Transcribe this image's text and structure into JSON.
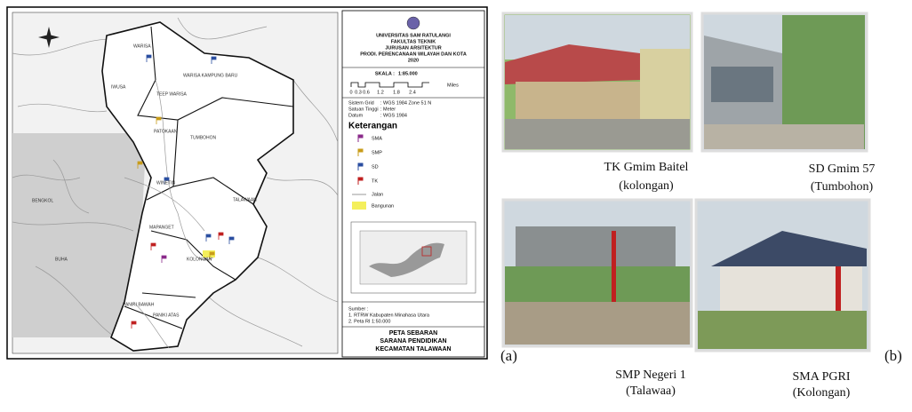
{
  "map": {
    "region_labels": [
      "WARISA",
      "WARISA KAMPUNG BARU",
      "TEEP WARISA",
      "IWUSA",
      "PATOKAAN",
      "TUMBOHON",
      "WINETIN",
      "BENGKOL",
      "TALAWAAN",
      "MAPANGET",
      "BUHA",
      "KOLONGAN",
      "PANIKI BAWAH",
      "PANIKI ATAS"
    ],
    "title_block": [
      "UNIVERSITAS SAM RATULANGI",
      "FAKULTAS TEKNIK",
      "JURUSAN ARSITEKTUR",
      "PRODI. PERENCANAAN WILAYAH DAN KOTA",
      "2020"
    ],
    "scale": {
      "label": "SKALA :",
      "ratio": "1:85.000",
      "unit": "Miles",
      "ticks": [
        "0",
        "0.3",
        "0.6",
        "1.2",
        "1.8",
        "2.4"
      ]
    },
    "projection": [
      [
        "Sistem Grid",
        ": WGS 1984 Zone 51 N"
      ],
      [
        "Satuan Tinggi",
        ": Meter"
      ],
      [
        "Datum",
        ": WGS 1984"
      ]
    ],
    "legend": {
      "title": "Keterangan",
      "items": [
        "SMA",
        "SMP",
        "SD",
        "TK",
        "Jalan",
        "Bangunan"
      ]
    },
    "sources": {
      "title": "Sumber :",
      "items": [
        "1. RTRW Kabupaten Minahasa Utara",
        "2. Peta RI 1:50.000"
      ]
    },
    "map_title": [
      "PETA SEBARAN",
      "SARANA PENDIDIKAN",
      "KECAMATAN TALAWAAN"
    ]
  },
  "panel_labels": [
    "(a)",
    "(b)"
  ],
  "photos": [
    {
      "name": "TK Gmim Baitel",
      "place": "(kolongan)"
    },
    {
      "name": "SD Gmim 57",
      "place": "(Tumbohon)"
    },
    {
      "name": "SMP Negeri 1",
      "place": "(Talawaa)"
    },
    {
      "name": "SMA PGRI",
      "place": "(Kolongan)"
    }
  ]
}
